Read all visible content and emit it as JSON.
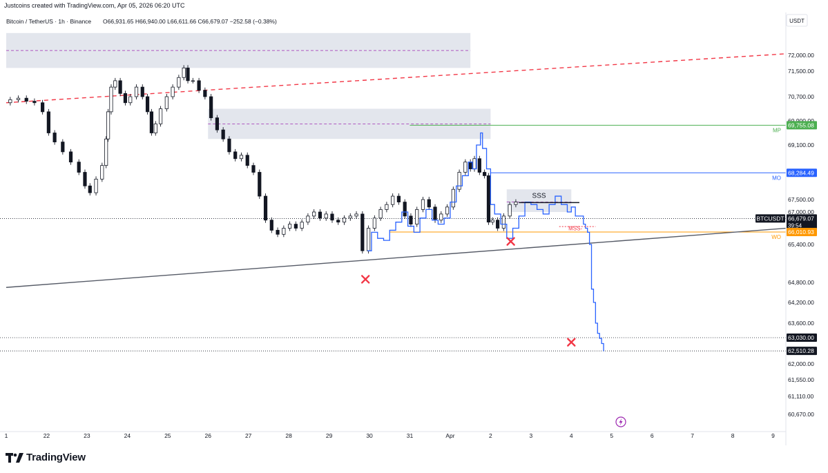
{
  "header": {
    "credit": "Justcoins created with TradingView.com, Apr 05, 2026 06:20 UTC",
    "symbol_line": "Bitcoin / TetherUS · 1h · Binance",
    "ohlc": {
      "open": "O66,931.65",
      "high": "H66,940.00",
      "low": "L66,611.66",
      "close": "C66,679.07",
      "change": "−252.58 (−0.38%)"
    }
  },
  "footer": {
    "brand": "TradingView"
  },
  "colors": {
    "candle": "#131722",
    "blue_projection": "#2962ff",
    "red_trend": "#f23645",
    "supply_zone": "#e0e3eb",
    "mp_green": "#4caf50",
    "mo_blue": "#2962ff",
    "wo_orange": "#ff9800",
    "mss_red": "#f23645",
    "trendline": "#555a66"
  },
  "chart_data": {
    "type": "line",
    "symbol": "BTCUSDT",
    "timeframe": "1h",
    "currency": "USDT",
    "ylim": [
      60500,
      72700
    ],
    "x_ticks": [
      "1",
      "22",
      "23",
      "24",
      "25",
      "26",
      "27",
      "28",
      "29",
      "30",
      "31",
      "Apr",
      "2",
      "3",
      "4",
      "5",
      "6",
      "7",
      "8",
      "9"
    ],
    "y_ticks": [
      "72,000.00",
      "71,500.00",
      "70,700.00",
      "69,900.00",
      "69,100.00",
      "67,500.00",
      "67,000.00",
      "65,400.00",
      "64,800.00",
      "64,200.00",
      "63,600.00",
      "62,000.00",
      "61,550.00",
      "61,110.00",
      "60,670.00"
    ],
    "y_tick_values": [
      72000,
      71500,
      70700,
      69900,
      69100,
      67500,
      67000,
      65400,
      64800,
      64200,
      63600,
      62000,
      61550,
      61110,
      60670
    ],
    "series": [
      {
        "name": "",
        "kind": "price",
        "points": [
          [
            21.0,
            70500
          ],
          [
            21.2,
            70600
          ],
          [
            21.4,
            70650
          ],
          [
            21.6,
            70550
          ],
          [
            21.8,
            70500
          ],
          [
            22.0,
            70200
          ],
          [
            22.1,
            69500
          ],
          [
            22.3,
            69200
          ],
          [
            22.5,
            68900
          ],
          [
            22.7,
            68600
          ],
          [
            22.9,
            68300
          ],
          [
            23.0,
            67900
          ],
          [
            23.15,
            67700
          ],
          [
            23.3,
            68100
          ],
          [
            23.45,
            68500
          ],
          [
            23.5,
            69300
          ],
          [
            23.55,
            70200
          ],
          [
            23.65,
            71000
          ],
          [
            23.75,
            71200
          ],
          [
            23.9,
            70800
          ],
          [
            24.0,
            70500
          ],
          [
            24.15,
            70700
          ],
          [
            24.3,
            71000
          ],
          [
            24.45,
            70700
          ],
          [
            24.55,
            70200
          ],
          [
            24.65,
            69500
          ],
          [
            24.75,
            69800
          ],
          [
            24.9,
            70300
          ],
          [
            25.05,
            70700
          ],
          [
            25.2,
            71000
          ],
          [
            25.35,
            71300
          ],
          [
            25.45,
            71600
          ],
          [
            25.55,
            71200
          ],
          [
            25.7,
            71200
          ],
          [
            25.85,
            70900
          ],
          [
            26.0,
            70700
          ],
          [
            26.15,
            70000
          ],
          [
            26.3,
            69600
          ],
          [
            26.45,
            69300
          ],
          [
            26.6,
            68900
          ],
          [
            26.75,
            68700
          ],
          [
            26.9,
            68800
          ],
          [
            27.05,
            68500
          ],
          [
            27.2,
            68300
          ],
          [
            27.35,
            67600
          ],
          [
            27.5,
            66600
          ],
          [
            27.65,
            66100
          ],
          [
            27.8,
            65900
          ],
          [
            27.95,
            66200
          ],
          [
            28.1,
            66400
          ],
          [
            28.25,
            66200
          ],
          [
            28.4,
            66500
          ],
          [
            28.55,
            66800
          ],
          [
            28.7,
            67000
          ],
          [
            28.85,
            66700
          ],
          [
            29.0,
            66900
          ],
          [
            29.15,
            66600
          ],
          [
            29.3,
            66500
          ],
          [
            29.45,
            66700
          ],
          [
            29.6,
            66800
          ],
          [
            29.75,
            66900
          ],
          [
            29.9,
            65300
          ],
          [
            30.05,
            66200
          ],
          [
            30.2,
            66700
          ],
          [
            30.35,
            67100
          ],
          [
            30.5,
            67300
          ],
          [
            30.65,
            67600
          ],
          [
            30.8,
            67400
          ],
          [
            30.95,
            66800
          ],
          [
            31.1,
            66400
          ],
          [
            31.25,
            67100
          ],
          [
            31.4,
            67500
          ],
          [
            31.55,
            67200
          ],
          [
            31.7,
            66600
          ],
          [
            31.85,
            66900
          ],
          [
            32.0,
            67200
          ],
          [
            32.15,
            67800
          ],
          [
            32.3,
            68300
          ],
          [
            32.45,
            68600
          ],
          [
            32.55,
            68400
          ],
          [
            32.65,
            68700
          ],
          [
            32.8,
            68300
          ],
          [
            32.9,
            68200
          ],
          [
            33.0,
            66500
          ],
          [
            33.1,
            66600
          ],
          [
            33.25,
            66200
          ],
          [
            33.4,
            66800
          ],
          [
            33.55,
            67300
          ],
          [
            33.7,
            67400
          ]
        ]
      },
      {
        "name": "",
        "kind": "projection",
        "points": [
          [
            29.95,
            65300
          ],
          [
            30.05,
            66000
          ],
          [
            30.2,
            65700
          ],
          [
            30.35,
            65600
          ],
          [
            30.5,
            66100
          ],
          [
            30.65,
            66500
          ],
          [
            30.8,
            67000
          ],
          [
            30.95,
            66300
          ],
          [
            31.1,
            66000
          ],
          [
            31.25,
            66700
          ],
          [
            31.4,
            67100
          ],
          [
            31.55,
            66600
          ],
          [
            31.7,
            66400
          ],
          [
            31.85,
            66700
          ],
          [
            32.0,
            67400
          ],
          [
            32.15,
            67900
          ],
          [
            32.3,
            68200
          ],
          [
            32.45,
            68600
          ],
          [
            32.55,
            68400
          ],
          [
            32.65,
            69100
          ],
          [
            32.75,
            69500
          ],
          [
            32.8,
            69000
          ],
          [
            32.9,
            68400
          ],
          [
            33.0,
            67300
          ],
          [
            33.1,
            66900
          ],
          [
            33.25,
            66400
          ],
          [
            33.4,
            65700
          ],
          [
            33.55,
            66200
          ],
          [
            33.7,
            66800
          ],
          [
            33.85,
            67400
          ],
          [
            34.0,
            67300
          ],
          [
            34.15,
            67100
          ],
          [
            34.3,
            66900
          ],
          [
            34.45,
            67300
          ],
          [
            34.6,
            67600
          ],
          [
            34.75,
            67300
          ],
          [
            34.9,
            67000
          ],
          [
            35.0,
            67200
          ],
          [
            35.1,
            66800
          ],
          [
            35.2,
            66800
          ],
          [
            35.3,
            66400
          ],
          [
            35.35,
            66200
          ],
          [
            35.4,
            66000
          ],
          [
            35.45,
            65400
          ],
          [
            35.5,
            64600
          ],
          [
            35.55,
            64200
          ],
          [
            35.6,
            63600
          ],
          [
            35.65,
            63200
          ],
          [
            35.7,
            63000
          ],
          [
            35.75,
            62800
          ],
          [
            35.8,
            62500
          ]
        ]
      }
    ],
    "levels": [
      {
        "label": "MP",
        "value": 69755.08,
        "value_label": "69,755.08"
      },
      {
        "label": "MO",
        "value": 68284.49,
        "value_label": "68,284.49"
      },
      {
        "label": "",
        "value": 66679.07,
        "value_label": "66,679.07",
        "ticker": "BTCUSDT",
        "countdown": "39:54"
      },
      {
        "label": "WO",
        "value": 66010.93,
        "value_label": "66,010.93"
      },
      {
        "label": "",
        "value": 63030.0,
        "value_label": "63,030.00"
      },
      {
        "label": "",
        "value": 62510.28,
        "value_label": "62,510.28"
      }
    ],
    "annotations": [
      {
        "text": "SSS",
        "x": 34.2,
        "y": 67550
      },
      {
        "text": "MSS-",
        "x": 35.1,
        "y": 66100
      }
    ],
    "markers": [
      {
        "type": "x",
        "x": 29.9,
        "y": 64850
      },
      {
        "type": "x",
        "x": 33.5,
        "y": 65550
      },
      {
        "type": "x",
        "x": 35.0,
        "y": 62850
      }
    ],
    "zones": [
      {
        "x1": 21.0,
        "x2": 32.5,
        "y1": 71600,
        "y2": 72700,
        "mid": 72150
      },
      {
        "x1": 26.0,
        "x2": 33.0,
        "y1": 69300,
        "y2": 70300,
        "mid": 69800
      },
      {
        "x1": 33.4,
        "x2": 35.0,
        "y1": 67000,
        "y2": 67800,
        "mid": 67400
      }
    ],
    "trendlines": [
      {
        "style": "dashed",
        "color": "red",
        "from": [
          21.0,
          70500
        ],
        "to": [
          41.0,
          72100
        ]
      },
      {
        "style": "solid",
        "color": "gray",
        "from": [
          21.0,
          64650
        ],
        "to": [
          41.0,
          66300
        ]
      }
    ]
  }
}
